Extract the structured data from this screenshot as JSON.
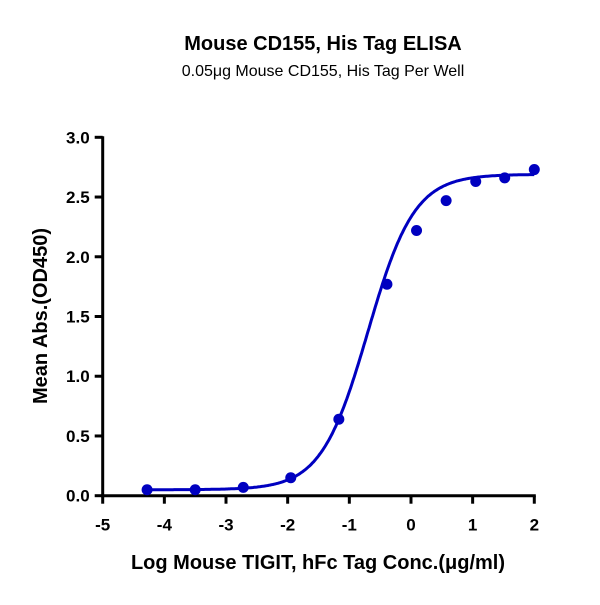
{
  "chart_data": {
    "type": "scatter",
    "title": "Mouse CD155, His Tag ELISA",
    "subtitle": "0.05μg Mouse CD155, His Tag Per Well",
    "xlabel": "Log Mouse TIGIT, hFc Tag Conc.(μg/ml)",
    "ylabel": "Mean Abs.(OD450)",
    "xlim": [
      -5,
      2
    ],
    "ylim": [
      0,
      3.0
    ],
    "xticks": [
      "-5",
      "-4",
      "-3",
      "-2",
      "-1",
      "0",
      "1",
      "2"
    ],
    "yticks": [
      "0.0",
      "0.5",
      "1.0",
      "1.5",
      "2.0",
      "2.5",
      "3.0"
    ],
    "grid": false,
    "color": "#0000c0",
    "x": [
      -4.28,
      -3.5,
      -2.72,
      -1.95,
      -1.17,
      -0.39,
      0.09,
      0.57,
      1.05,
      1.52,
      2.0
    ],
    "y": [
      0.05,
      0.05,
      0.07,
      0.15,
      0.64,
      1.77,
      2.22,
      2.47,
      2.63,
      2.66,
      2.73
    ],
    "fit": {
      "model": "4PL",
      "bottom": 0.05,
      "top": 2.69,
      "logEC50": -0.7,
      "hill": 1.15
    }
  }
}
